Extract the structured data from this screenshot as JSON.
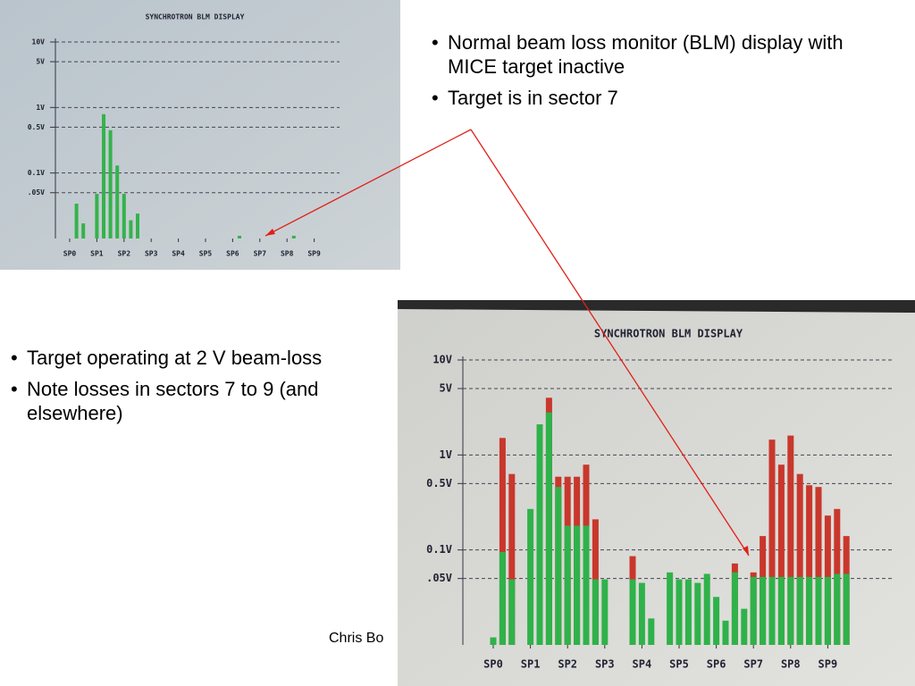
{
  "slide": {
    "bullets_top": [
      "Normal beam loss monitor (BLM) display with MICE target inactive",
      "Target is in sector 7"
    ],
    "bullets_left": [
      "Target operating at 2 V beam-loss",
      "Note losses in sectors 7 to 9 (and elsewhere)"
    ],
    "footer": "Chris Bo"
  },
  "chart_data": [
    {
      "type": "bar",
      "title": "SYNCHROTRON BLM DISPLAY",
      "log": true,
      "grid": true,
      "categories": [
        "SP0",
        null,
        null,
        null,
        "SP1",
        null,
        null,
        null,
        "SP2",
        null,
        null,
        null,
        "SP3",
        null,
        null,
        null,
        "SP4",
        null,
        null,
        null,
        "SP5",
        null,
        null,
        null,
        "SP6",
        null,
        null,
        null,
        "SP7",
        null,
        null,
        null,
        "SP8",
        null,
        null,
        null,
        "SP9",
        null,
        null,
        null
      ],
      "ylim": [
        0.01,
        10
      ],
      "yticks": [
        {
          "value": 10,
          "label": "10V"
        },
        {
          "value": 5,
          "label": "5V"
        },
        {
          "value": 1,
          "label": "1V"
        },
        {
          "value": 0.5,
          "label": "0.5V"
        },
        {
          "value": 0.1,
          "label": "0.1V"
        },
        {
          "value": 0.05,
          "label": ".05V"
        }
      ],
      "series": [
        {
          "color": "#33b34a",
          "values": [
            null,
            0.034,
            0.017,
            null,
            0.048,
            0.79,
            0.45,
            0.13,
            0.048,
            0.019,
            0.024,
            null,
            null,
            null,
            null,
            null,
            null,
            null,
            null,
            null,
            null,
            null,
            null,
            null,
            null,
            0.011,
            null,
            null,
            null,
            null,
            null,
            null,
            null,
            0.011,
            null,
            null,
            null,
            null,
            null,
            null
          ]
        }
      ]
    },
    {
      "type": "bar",
      "title": "SYNCHROTRON BLM DISPLAY",
      "log": true,
      "grid": true,
      "categories": [
        "SP0",
        null,
        null,
        null,
        "SP1",
        null,
        null,
        null,
        "SP2",
        null,
        null,
        null,
        "SP3",
        null,
        null,
        null,
        "SP4",
        null,
        null,
        null,
        "SP5",
        null,
        null,
        null,
        "SP6",
        null,
        null,
        null,
        "SP7",
        null,
        null,
        null,
        "SP8",
        null,
        null,
        null,
        "SP9",
        null,
        null,
        null
      ],
      "ylim": [
        0.01,
        10
      ],
      "yticks": [
        {
          "value": 10,
          "label": "10V"
        },
        {
          "value": 5,
          "label": "5V"
        },
        {
          "value": 1,
          "label": "1V"
        },
        {
          "value": 0.5,
          "label": "0.5V"
        },
        {
          "value": 0.1,
          "label": "0.1V"
        },
        {
          "value": 0.05,
          "label": ".05V"
        }
      ],
      "series": [
        {
          "color": "#c9372c",
          "values": [
            null,
            1.51,
            0.63,
            null,
            null,
            null,
            4.0,
            0.59,
            0.59,
            0.59,
            0.79,
            0.21,
            null,
            null,
            null,
            0.086,
            null,
            null,
            null,
            null,
            null,
            null,
            null,
            null,
            null,
            null,
            0.072,
            null,
            0.058,
            0.14,
            1.45,
            0.79,
            1.6,
            0.63,
            0.48,
            0.46,
            0.23,
            0.27,
            0.14,
            null
          ]
        },
        {
          "color": "#2fb24a",
          "values": [
            0.012,
            0.095,
            0.049,
            null,
            0.27,
            2.1,
            2.8,
            0.46,
            0.18,
            0.18,
            0.18,
            0.049,
            0.049,
            null,
            null,
            0.049,
            0.045,
            0.019,
            null,
            0.058,
            0.049,
            0.049,
            0.045,
            0.056,
            0.032,
            0.018,
            0.058,
            0.024,
            0.052,
            0.052,
            0.052,
            0.052,
            0.052,
            0.052,
            0.052,
            0.052,
            0.052,
            0.056,
            0.056,
            null
          ]
        }
      ]
    }
  ]
}
